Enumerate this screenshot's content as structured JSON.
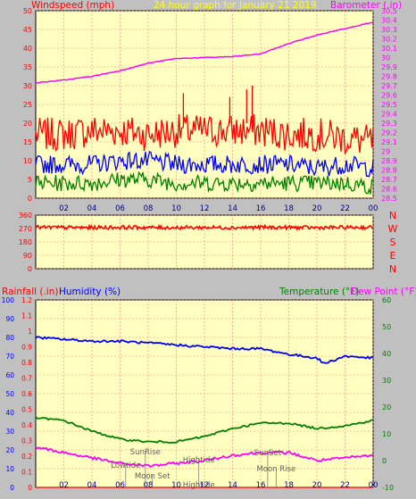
{
  "header": {
    "left_label": "Windspeed (mph)",
    "center_label": "24 hour graph for   January 21 2019",
    "right_label": "Barometer (.in)"
  },
  "colors": {
    "background": "#c0c0c0",
    "plot_bg": "#ffffc0",
    "grid": "#ff8080",
    "wind_gust": "#ff0000",
    "wind_avg": "#0000ff",
    "wind_low": "#008000",
    "barometer": "#ff00ff",
    "humidity": "#0000ff",
    "temperature": "#008000",
    "dew_point": "#ff00ff",
    "rainfall": "#ff0000",
    "direction": "#ff0000"
  },
  "x_ticks": [
    "02",
    "04",
    "06",
    "08",
    "10",
    "12",
    "14",
    "16",
    "18",
    "20",
    "22",
    "00"
  ],
  "panel1": {
    "left_ticks": [
      "0",
      "5",
      "10",
      "15",
      "20",
      "25",
      "30",
      "35",
      "40",
      "45",
      "50"
    ],
    "right_ticks": [
      "28.5",
      "28.6",
      "28.7",
      "28.8",
      "28.9",
      "29",
      "29.1",
      "29.2",
      "29.3",
      "29.4",
      "29.5",
      "29.6",
      "29.7",
      "29.8",
      "29.9",
      "30",
      "30.1",
      "30.2",
      "30.3",
      "30.4",
      "30.5"
    ]
  },
  "panel2": {
    "left_ticks": [
      "0",
      "90",
      "180",
      "270",
      "360"
    ],
    "compass": [
      "N",
      "W",
      "S",
      "E",
      "N"
    ]
  },
  "panel3": {
    "labels": {
      "rainfall": "Rainfall (.in)",
      "humidity": "Humidity (%)",
      "temperature": "Temperature (°F)",
      "dew_point": "Dew Point (°F)"
    },
    "hum_ticks": [
      "0",
      "10",
      "20",
      "30",
      "40",
      "50",
      "60",
      "70",
      "80",
      "90",
      "100"
    ],
    "rain_ticks": [
      "0",
      "0.1",
      "0.2",
      "0.3",
      "0.4",
      "0.5",
      "0.6",
      "0.7",
      "0.8",
      "0.9",
      "1",
      "1.1",
      "1.2"
    ],
    "temp_ticks": [
      "-10",
      "0",
      "10",
      "20",
      "30",
      "40",
      "50",
      "60"
    ],
    "events": [
      "SunRise",
      "Lowtide",
      "Moon Set",
      "Hightide",
      "Hightide",
      "SunSet",
      "Moon Rise"
    ]
  },
  "chart_data": [
    {
      "type": "line",
      "xlabel": "",
      "xlim_hours": [
        0,
        24
      ],
      "ylim_left": [
        0,
        50
      ],
      "ylim_right": [
        28.5,
        30.5
      ],
      "series": [
        {
          "name": "Windspeed (mph)",
          "axis": "left",
          "hours": [
            0,
            2,
            4,
            6,
            8,
            10,
            12,
            14,
            16,
            18,
            20,
            22,
            24
          ],
          "values": [
            9,
            9,
            9,
            10,
            10,
            9,
            9,
            9,
            9,
            9,
            8,
            9,
            8
          ]
        },
        {
          "axis": "left",
          "hours": [
            0,
            2,
            4,
            6,
            8,
            10,
            12,
            14,
            16,
            18,
            20,
            22,
            24
          ],
          "values": [
            17,
            17,
            18,
            18,
            17,
            18,
            18,
            18,
            18,
            17,
            17,
            16,
            15
          ]
        },
        {
          "axis": "left",
          "hours": [
            0,
            2,
            4,
            6,
            8,
            10,
            12,
            14,
            16,
            18,
            20,
            22,
            24
          ],
          "values": [
            4,
            4,
            4,
            5,
            5,
            4,
            4,
            4,
            4,
            4,
            4,
            4,
            3
          ]
        },
        {
          "name": "Barometer (.in)",
          "axis": "right",
          "hours": [
            0,
            2,
            4,
            6,
            8,
            10,
            12,
            14,
            16,
            18,
            20,
            22,
            24
          ],
          "values": [
            29.73,
            29.76,
            29.8,
            29.86,
            29.94,
            29.99,
            30.0,
            30.01,
            30.04,
            30.15,
            30.24,
            30.31,
            30.38
          ]
        }
      ]
    },
    {
      "type": "line",
      "xlim_hours": [
        0,
        24
      ],
      "ylim": [
        0,
        360
      ],
      "series": [
        {
          "hours": [
            0,
            2,
            4,
            6,
            8,
            10,
            12,
            14,
            16,
            18,
            20,
            22,
            24
          ],
          "values": [
            278,
            277,
            276,
            278,
            277,
            276,
            277,
            276,
            278,
            277,
            276,
            277,
            278
          ]
        }
      ]
    },
    {
      "type": "line",
      "xlim_hours": [
        0,
        24
      ],
      "ylim_humidity": [
        0,
        100
      ],
      "ylim_rain": [
        0,
        1.2
      ],
      "ylim_temp": [
        -10,
        60
      ],
      "series": [
        {
          "name": "Humidity (%)",
          "axis": "humidity",
          "hours": [
            0,
            2,
            4,
            6,
            8,
            10,
            12,
            14,
            16,
            18,
            20,
            20.5,
            22,
            24
          ],
          "values": [
            80,
            79,
            78,
            78,
            77,
            76,
            75,
            74,
            74,
            71,
            69,
            66,
            70,
            69
          ]
        },
        {
          "name": "Temperature (°F)",
          "axis": "temp",
          "hours": [
            0,
            2,
            4,
            6,
            8,
            10,
            12,
            14,
            16,
            18,
            20,
            22,
            24
          ],
          "values": [
            16,
            15,
            11,
            8,
            7,
            7,
            9,
            12,
            14,
            14,
            12,
            13,
            15
          ]
        },
        {
          "name": "Dew Point (°F)",
          "axis": "temp",
          "hours": [
            0,
            2,
            4,
            6,
            8,
            10,
            12,
            14,
            16,
            18,
            20,
            22,
            24
          ],
          "values": [
            5,
            3,
            1,
            -1,
            -2,
            -1,
            0,
            2,
            3,
            3,
            0,
            1,
            2
          ]
        },
        {
          "name": "Rainfall (.in)",
          "axis": "rain",
          "hours": [
            0,
            24
          ],
          "values": [
            0,
            0
          ]
        }
      ]
    }
  ]
}
